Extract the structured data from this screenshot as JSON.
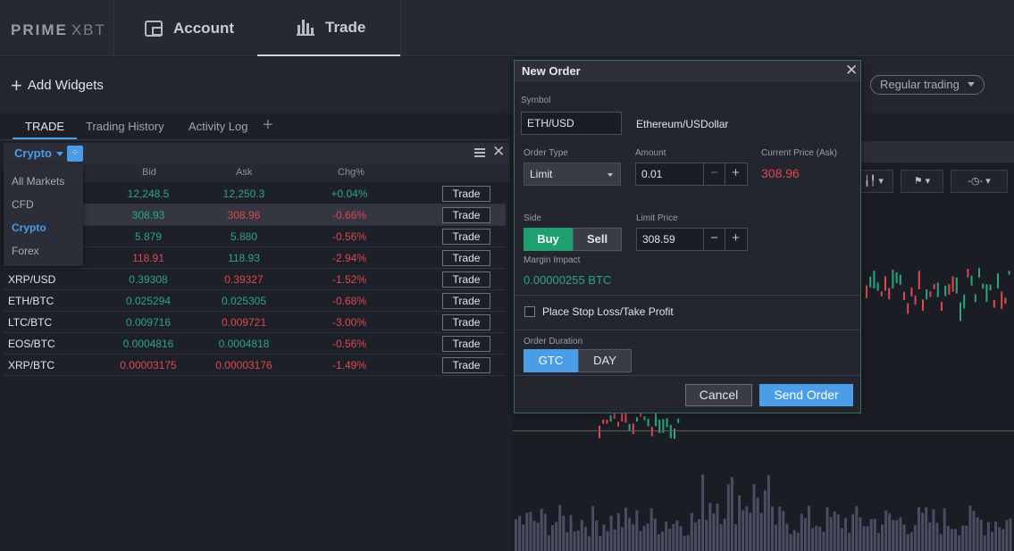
{
  "logo": {
    "bold": "PRIME",
    "light": "XBT"
  },
  "nav": {
    "account": "Account",
    "trade": "Trade"
  },
  "toolbar": {
    "add_widgets": "Add Widgets",
    "regular_trading": "Regular trading"
  },
  "widget_tabs": [
    {
      "label": "TRADE"
    },
    {
      "label": "Trading History"
    },
    {
      "label": "Activity Log"
    }
  ],
  "market_widget": {
    "selector": "Crypto",
    "columns": {
      "bid": "Bid",
      "ask": "Ask",
      "chg": "Chg%"
    },
    "dropdown": [
      "All Markets",
      "CFD",
      "Crypto",
      "Forex"
    ],
    "rows": [
      {
        "symbol": "",
        "bid": "12,248.5",
        "ask": "12,250.3",
        "chg": "+0.04%",
        "bid_c": "green",
        "ask_c": "green",
        "chg_c": "green",
        "trade": "Trade"
      },
      {
        "symbol": "",
        "bid": "308.93",
        "ask": "308.96",
        "chg": "-0.66%",
        "bid_c": "green",
        "ask_c": "red",
        "chg_c": "red",
        "trade": "Trade"
      },
      {
        "symbol": "",
        "bid": "5.879",
        "ask": "5.880",
        "chg": "-0.56%",
        "bid_c": "green",
        "ask_c": "green",
        "chg_c": "red",
        "trade": "Trade"
      },
      {
        "symbol": "",
        "bid": "118.91",
        "ask": "118.93",
        "chg": "-2.94%",
        "bid_c": "red",
        "ask_c": "green",
        "chg_c": "red",
        "trade": "Trade"
      },
      {
        "symbol": "XRP/USD",
        "bid": "0.39308",
        "ask": "0.39327",
        "chg": "-1.52%",
        "bid_c": "green",
        "ask_c": "red",
        "chg_c": "red",
        "trade": "Trade"
      },
      {
        "symbol": "ETH/BTC",
        "bid": "0.025294",
        "ask": "0.025305",
        "chg": "-0.68%",
        "bid_c": "green",
        "ask_c": "green",
        "chg_c": "red",
        "trade": "Trade"
      },
      {
        "symbol": "LTC/BTC",
        "bid": "0.009716",
        "ask": "0.009721",
        "chg": "-3.00%",
        "bid_c": "green",
        "ask_c": "red",
        "chg_c": "red",
        "trade": "Trade"
      },
      {
        "symbol": "EOS/BTC",
        "bid": "0.0004816",
        "ask": "0.0004818",
        "chg": "-0.56%",
        "bid_c": "green",
        "ask_c": "green",
        "chg_c": "red",
        "trade": "Trade"
      },
      {
        "symbol": "XRP/BTC",
        "bid": "0.00003175",
        "ask": "0.00003176",
        "chg": "-1.49%",
        "bid_c": "red",
        "ask_c": "red",
        "chg_c": "red",
        "trade": "Trade"
      }
    ]
  },
  "order": {
    "title": "New Order",
    "symbol_label": "Symbol",
    "symbol_value": "ETH/USD",
    "symbol_desc": "Ethereum/USDollar",
    "order_type_label": "Order Type",
    "order_type_value": "Limit",
    "amount_label": "Amount",
    "amount_value": "0.01",
    "current_price_label": "Current Price (Ask)",
    "current_price_value": "308.96",
    "side_label": "Side",
    "buy": "Buy",
    "sell": "Sell",
    "limit_price_label": "Limit Price",
    "limit_price_value": "308.59",
    "margin_label": "Margin Impact",
    "margin_value": "0.00000255 BTC",
    "stop_loss_label": "Place Stop Loss/Take Profit",
    "duration_label": "Order Duration",
    "gtc": "GTC",
    "day": "DAY",
    "cancel": "Cancel",
    "send": "Send Order",
    "minus": "−",
    "plus": "+"
  },
  "colors": {
    "accent": "#4a9de6",
    "buy": "#1f9e6e",
    "positive": "#2ba77d",
    "negative": "#e0474f"
  }
}
